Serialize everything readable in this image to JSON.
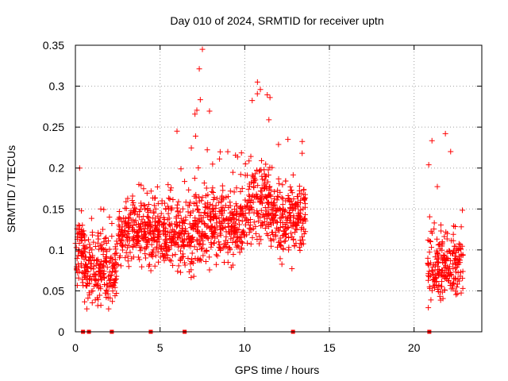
{
  "chart_data": {
    "type": "scatter",
    "title": "Day 010 of 2024, SRMTID for receiver uptn",
    "xlabel": "GPS time / hours",
    "ylabel": "SRMTID / TECUs",
    "xlim": [
      0,
      24
    ],
    "ylim": [
      0,
      0.35
    ],
    "x_ticks": [
      0,
      5,
      10,
      15,
      20
    ],
    "x_tick_labels": [
      "0",
      "5",
      "10",
      "15",
      "20"
    ],
    "y_ticks": [
      0,
      0.05,
      0.1,
      0.15,
      0.2,
      0.25,
      0.3,
      0.35
    ],
    "y_tick_labels": [
      "0",
      "0.05",
      "0.1",
      "0.15",
      "0.2",
      "0.25",
      "0.3",
      "0.35"
    ],
    "grid": true,
    "marker": "plus",
    "color": "#ff0000",
    "zero_markers_x": [
      0.45,
      0.8,
      2.15,
      4.45,
      6.45,
      12.85,
      20.9
    ],
    "envelope": [
      {
        "x_start": 0.0,
        "x_end": 0.5,
        "median": 0.1,
        "spread": 0.04,
        "max": 0.2
      },
      {
        "x_start": 0.5,
        "x_end": 2.5,
        "median": 0.075,
        "spread": 0.035,
        "max": 0.15
      },
      {
        "x_start": 2.5,
        "x_end": 5.0,
        "median": 0.12,
        "spread": 0.035,
        "max": 0.18
      },
      {
        "x_start": 5.0,
        "x_end": 7.0,
        "median": 0.12,
        "spread": 0.04,
        "max": 0.245
      },
      {
        "x_start": 7.0,
        "x_end": 8.0,
        "median": 0.13,
        "spread": 0.04,
        "max": 0.345
      },
      {
        "x_start": 8.0,
        "x_end": 10.0,
        "median": 0.13,
        "spread": 0.04,
        "max": 0.22
      },
      {
        "x_start": 10.0,
        "x_end": 11.5,
        "median": 0.16,
        "spread": 0.045,
        "max": 0.305
      },
      {
        "x_start": 11.5,
        "x_end": 13.6,
        "median": 0.14,
        "spread": 0.045,
        "max": 0.235
      },
      {
        "x_start": 20.8,
        "x_end": 22.9,
        "median": 0.08,
        "spread": 0.035,
        "max": 0.242
      }
    ]
  }
}
